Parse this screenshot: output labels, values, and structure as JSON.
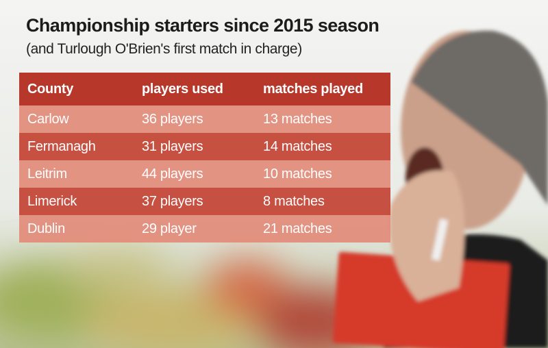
{
  "header": {
    "title": "Championship starters since 2015 season",
    "subtitle": "(and Turlough O'Brien's first match in charge)"
  },
  "table": {
    "columns": [
      "County",
      "players used",
      "matches played"
    ],
    "rows": [
      [
        "Carlow",
        "36 players",
        "13 matches"
      ],
      [
        "Fermanagh",
        "31 players",
        "14 matches"
      ],
      [
        "Leitrim",
        "44 players",
        "10 matches"
      ],
      [
        "Limerick",
        "37 players",
        "8 matches"
      ],
      [
        "Dublin",
        "29 player",
        "21 matches"
      ]
    ]
  }
}
